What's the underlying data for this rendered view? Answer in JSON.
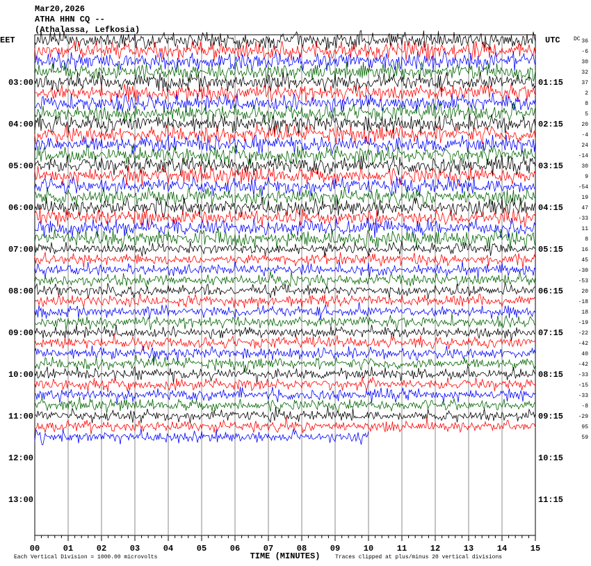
{
  "header": {
    "lines": [
      "Mar20,2026",
      "ATHA HHN CQ --",
      "(Athalassa, Lefkosia)"
    ]
  },
  "left_axis": {
    "title": "EET",
    "labels": [
      "03:00",
      "04:00",
      "05:00",
      "06:00",
      "07:00",
      "08:00",
      "09:00",
      "10:00",
      "11:00",
      "12:00",
      "13:00"
    ]
  },
  "right_axis": {
    "title": "UTC",
    "labels": [
      "01:15",
      "02:15",
      "03:15",
      "04:15",
      "05:15",
      "06:15",
      "07:15",
      "08:15",
      "09:15",
      "10:15",
      "11:15"
    ]
  },
  "dc": {
    "title": "DC",
    "values": [
      "36",
      "-6",
      "30",
      "32",
      "37",
      "2",
      "8",
      "5",
      "20",
      "-4",
      "24",
      "-14",
      "30",
      "9",
      "-54",
      "19",
      "47",
      "-33",
      "11",
      "8",
      "16",
      "45",
      "-30",
      "-53",
      "20",
      "-18",
      "18",
      "-19",
      "-22",
      "-42",
      "40",
      "-42",
      "-33",
      "-15",
      "-33",
      "-8",
      "-29",
      "95",
      "59"
    ]
  },
  "trace_colors": [
    "#000000",
    "#ff0000",
    "#0000ff",
    "#006400"
  ],
  "x_axis": {
    "title": "TIME (MINUTES)",
    "labels": [
      "00",
      "01",
      "02",
      "03",
      "04",
      "05",
      "06",
      "07",
      "08",
      "09",
      "10",
      "11",
      "12",
      "13",
      "14",
      "15"
    ]
  },
  "footer": {
    "scale": "Each Vertical Division = 1000.00 microvolts",
    "clip": "Traces clipped at plus/minus 20 vertical divisions"
  }
}
